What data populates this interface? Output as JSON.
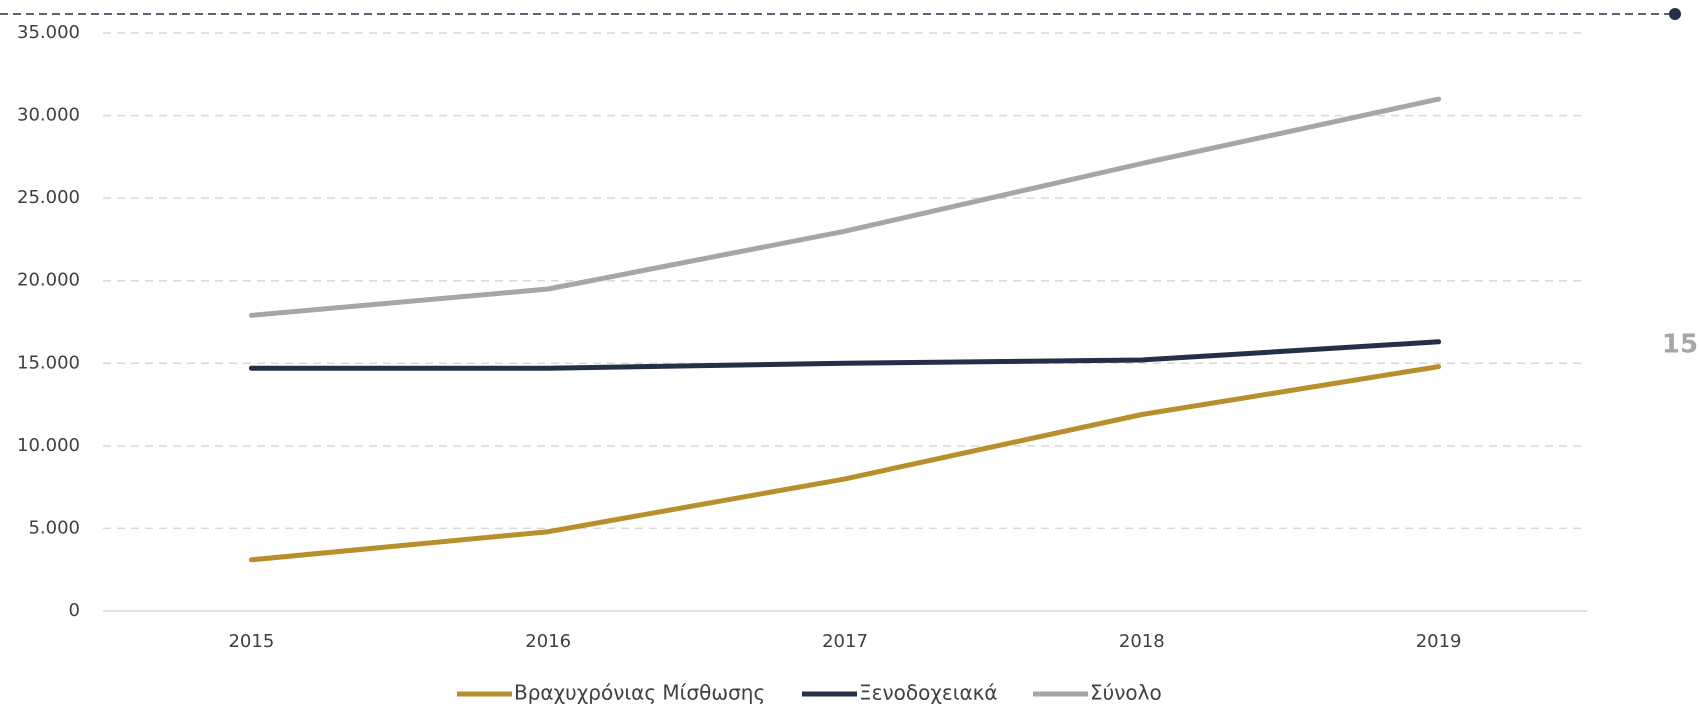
{
  "page_number": "15",
  "chart_data": {
    "type": "line",
    "categories": [
      "2015",
      "2016",
      "2017",
      "2018",
      "2019"
    ],
    "series": [
      {
        "name": "Βραχυχρόνιας Μίσθωσης",
        "color": "#b98f2e",
        "values": [
          3100,
          4800,
          8000,
          11900,
          14800
        ]
      },
      {
        "name": "Ξενοδοχειακά",
        "color": "#243047",
        "values": [
          14700,
          14700,
          15000,
          15200,
          16300
        ]
      },
      {
        "name": "Σύνολο",
        "color": "#a6a6a6",
        "values": [
          17900,
          19500,
          23000,
          27100,
          31000
        ]
      }
    ],
    "ylim": [
      0,
      35000
    ],
    "yticks": [
      0,
      {
        "value": 5000,
        "label": "5.000"
      },
      {
        "value": 10000,
        "label": "10.000"
      },
      {
        "value": 15000,
        "label": "15.000"
      },
      {
        "value": 20000,
        "label": "20.000"
      },
      {
        "value": 25000,
        "label": "25.000"
      },
      {
        "value": 30000,
        "label": "30.000"
      },
      {
        "value": 35000,
        "label": "35.000"
      }
    ],
    "grid": true
  }
}
